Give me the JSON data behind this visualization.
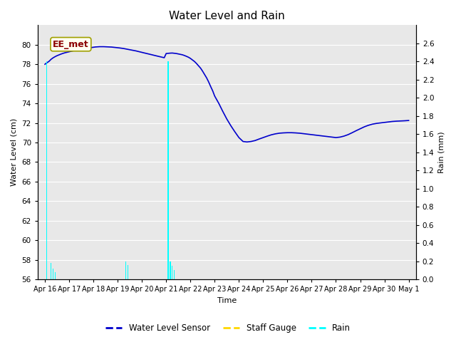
{
  "title": "Water Level and Rain",
  "xlabel": "Time",
  "ylabel_left": "Water Level (cm)",
  "ylabel_right": "Rain (mm)",
  "annotation_text": "EE_met",
  "annotation_color": "#8B0000",
  "annotation_bg": "#FFFFF0",
  "annotation_border": "#A0A000",
  "water_level_color": "#0000CC",
  "rain_color": "cyan",
  "staff_gauge_color": "#FFD700",
  "ylim_left": [
    56,
    82
  ],
  "ylim_right": [
    0.0,
    2.8
  ],
  "yticks_left": [
    56,
    58,
    60,
    62,
    64,
    66,
    68,
    70,
    72,
    74,
    76,
    78,
    80
  ],
  "yticks_right": [
    0.0,
    0.2,
    0.4,
    0.6,
    0.8,
    1.0,
    1.2,
    1.4,
    1.6,
    1.8,
    2.0,
    2.2,
    2.4,
    2.6
  ],
  "bg_color": "#E8E8E8",
  "fig_bg_color": "#FFFFFF",
  "xtick_labels": [
    "Apr 16",
    "Apr 17",
    "Apr 18",
    "Apr 19",
    "Apr 20",
    "Apr 21",
    "Apr 22",
    "Apr 23",
    "Apr 24",
    "Apr 25",
    "Apr 26",
    "Apr 27",
    "Apr 28",
    "Apr 29",
    "Apr 30",
    "May 1"
  ],
  "water_level_x": [
    0.0,
    0.08,
    0.17,
    0.25,
    0.33,
    0.42,
    0.5,
    0.58,
    0.67,
    0.75,
    0.83,
    0.92,
    1.0,
    1.08,
    1.17,
    1.25,
    1.33,
    1.42,
    1.5,
    1.58,
    1.67,
    1.75,
    1.83,
    1.92,
    2.0,
    2.08,
    2.17,
    2.25,
    2.33,
    2.42,
    2.5,
    2.58,
    2.67,
    2.75,
    2.83,
    2.92,
    3.0,
    3.08,
    3.17,
    3.25,
    3.33,
    3.42,
    3.5,
    3.58,
    3.67,
    3.75,
    3.83,
    3.92,
    4.0,
    4.08,
    4.17,
    4.25,
    4.33,
    4.42,
    4.5,
    4.58,
    4.67,
    4.75,
    4.83,
    4.92,
    5.0,
    5.08,
    5.17,
    5.25,
    5.33,
    5.42,
    5.5,
    5.58,
    5.67,
    5.75,
    5.83,
    5.92,
    6.0,
    6.08,
    6.17,
    6.25,
    6.33,
    6.42,
    6.5,
    6.58,
    6.67,
    6.75,
    6.83,
    6.92,
    7.0,
    7.17,
    7.33,
    7.5,
    7.67,
    7.83,
    8.0,
    8.17,
    8.33,
    8.5,
    8.67,
    8.83,
    9.0,
    9.17,
    9.33,
    9.5,
    9.67,
    9.83,
    10.0,
    10.17,
    10.33,
    10.5,
    10.67,
    10.83,
    11.0,
    11.17,
    11.33,
    11.5,
    11.67,
    11.83,
    12.0,
    12.17,
    12.33,
    12.5,
    12.67,
    12.83,
    13.0,
    13.17,
    13.33,
    13.5,
    13.67,
    13.83,
    14.0,
    14.17,
    14.33,
    14.5,
    14.67,
    14.83,
    15.0
  ],
  "water_level_y": [
    78.0,
    78.15,
    78.3,
    78.5,
    78.65,
    78.78,
    78.88,
    78.96,
    79.05,
    79.12,
    79.18,
    79.23,
    79.28,
    79.33,
    79.38,
    79.43,
    79.48,
    79.52,
    79.56,
    79.6,
    79.62,
    79.65,
    79.68,
    79.71,
    79.75,
    79.77,
    79.79,
    79.8,
    79.8,
    79.8,
    79.79,
    79.78,
    79.77,
    79.76,
    79.74,
    79.72,
    79.7,
    79.67,
    79.64,
    79.61,
    79.57,
    79.53,
    79.49,
    79.45,
    79.41,
    79.37,
    79.32,
    79.27,
    79.22,
    79.17,
    79.12,
    79.07,
    79.02,
    78.97,
    78.92,
    78.87,
    78.82,
    78.77,
    78.72,
    78.67,
    79.1,
    79.12,
    79.14,
    79.15,
    79.13,
    79.1,
    79.06,
    79.02,
    78.97,
    78.9,
    78.82,
    78.72,
    78.6,
    78.45,
    78.28,
    78.08,
    77.85,
    77.6,
    77.3,
    76.97,
    76.6,
    76.2,
    75.75,
    75.27,
    74.75,
    74.0,
    73.2,
    72.4,
    71.7,
    71.1,
    70.5,
    70.1,
    70.05,
    70.1,
    70.2,
    70.35,
    70.5,
    70.65,
    70.78,
    70.88,
    70.95,
    70.98,
    71.0,
    71.0,
    70.98,
    70.95,
    70.9,
    70.85,
    70.8,
    70.75,
    70.7,
    70.65,
    70.6,
    70.55,
    70.5,
    70.55,
    70.65,
    70.8,
    71.0,
    71.2,
    71.4,
    71.6,
    71.75,
    71.87,
    71.95,
    72.0,
    72.05,
    72.1,
    72.15,
    72.18,
    72.2,
    72.22,
    72.25
  ],
  "rain_events_x": [
    0.08,
    0.25,
    0.33,
    0.42,
    3.33,
    3.42,
    5.08,
    5.17,
    5.25,
    5.33
  ],
  "rain_events_h": [
    2.4,
    0.18,
    0.12,
    0.08,
    0.2,
    0.16,
    2.4,
    0.2,
    0.15,
    0.1
  ],
  "rain_bar_width": 0.04,
  "legend_labels": [
    "Water Level Sensor",
    "Staff Gauge",
    "Rain"
  ],
  "legend_colors": [
    "#0000CC",
    "#FFD700",
    "cyan"
  ]
}
